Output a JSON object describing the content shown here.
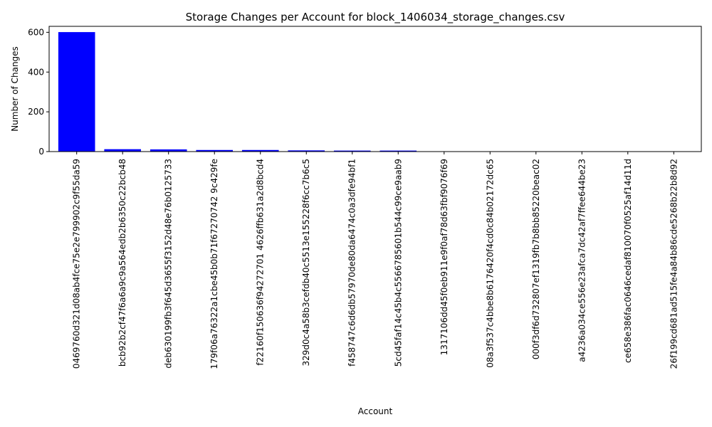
{
  "chart_data": {
    "type": "bar",
    "title": "Storage Changes per Account for block_1406034_storage_changes.csv",
    "xlabel": "Account",
    "ylabel": "Number of Changes",
    "ylim": [
      0,
      630
    ],
    "yticks": [
      0,
      200,
      400,
      600
    ],
    "grid": false,
    "legend": "none",
    "bar_color": "#0000ff",
    "categories": [
      "0469760d321d08ab4fce75e2e799902c9f55da59",
      "bcb92b2cf47f6a6a9c9a564edb2b6350c22bcb48",
      "deb630199fb3f645d3655f3152d48e76b0125733",
      "179f06a76322a1cbe45b0b71f67270742 9c429fe",
      "f22160f150636f94272701 4626ffb631a2d8bcd4",
      "329d0c4a58b3cefdb40c5513e155228f6cc7b6c5",
      "f458747c6d6db57970de80da6474c0a3dfe94bf1",
      "5cd45faf14c45b4c5566785601b544c99ce9aab9",
      "1317106dd45f0eb911e9f0af78d63fbf9076f69",
      "08a3f537c4bbe8b6176420f4cd0c84b02172dc65",
      "000f3df6d732807ef1319fb7b8bb85220beac02",
      "a4236a034ce556e23afca7dc42af7ffee644be23",
      "ce658e386fac0646cedaf810070f0525af14d11d",
      "26f199cd681ad515fe4a84b86cde5268b22b8d92"
    ],
    "values": [
      601,
      12,
      11,
      8,
      8,
      6,
      5,
      5,
      1,
      1,
      1,
      1,
      1,
      1
    ]
  }
}
